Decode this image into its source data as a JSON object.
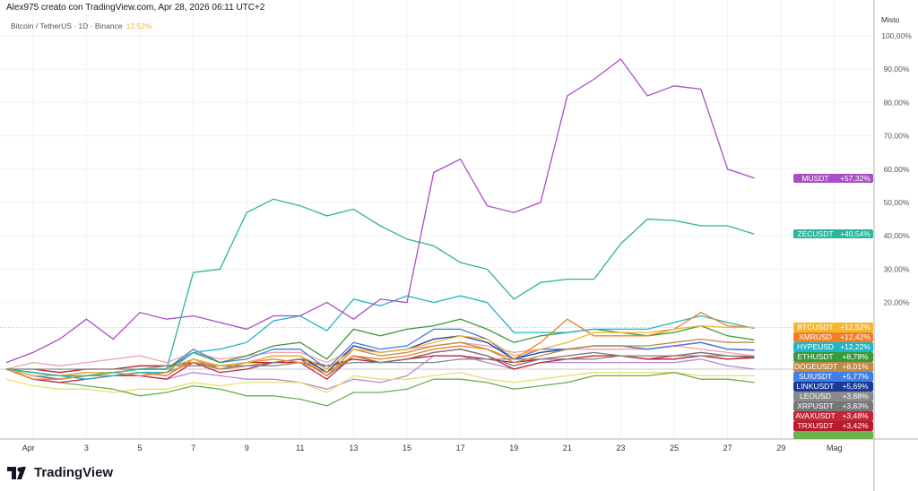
{
  "header": {
    "attribution": "Alex975 creato con TradingView.com, Apr 28, 2026 06:11 UTC+2"
  },
  "legend": {
    "symbol": "Bitcoin / TetherUS · 1D · Binance",
    "change": "12,52%"
  },
  "axis": {
    "scale_mode": "Misto"
  },
  "logo": {
    "text": "TradingView"
  },
  "chart_data": {
    "type": "line",
    "x_tick_labels": [
      "Apr",
      "3",
      "5",
      "7",
      "9",
      "11",
      "13",
      "15",
      "17",
      "19",
      "21",
      "23",
      "25",
      "27",
      "29",
      "Mag"
    ],
    "y_tick_labels": [
      "100,00%",
      "90,00%",
      "80,00%",
      "70,00%",
      "60,00%",
      "50,00%",
      "40,00%",
      "30,00%",
      "20,00%"
    ],
    "ylim": [
      -22,
      103
    ],
    "grid": true,
    "series": [
      {
        "name": "MUSDT",
        "label": "+57,32%",
        "color": "#a94ec4",
        "values": [
          2,
          5,
          9,
          15,
          9,
          17,
          15,
          16,
          14,
          12,
          16,
          16,
          20,
          15,
          21,
          20,
          59,
          63,
          49,
          47,
          50,
          82,
          87,
          93,
          82,
          85,
          84,
          60,
          57.32
        ]
      },
      {
        "name": "ZECUSDT",
        "label": "+40,54%",
        "color": "#2bb59a",
        "values": [
          0,
          -1,
          -2,
          -2,
          -1,
          0,
          0,
          29,
          30,
          47,
          51,
          49,
          46,
          48,
          43,
          39,
          37,
          32,
          30,
          21,
          26,
          27,
          27,
          37.6,
          45,
          44.6,
          43,
          43,
          40.54
        ]
      },
      {
        "name": "BTCUSDT",
        "label": "+12,52%",
        "color": "#f5b52e",
        "values": [
          0,
          -2,
          -2,
          -1,
          -1,
          0,
          0,
          3,
          1,
          2,
          4,
          4,
          0,
          6,
          5,
          6,
          8,
          10,
          9,
          4,
          6,
          8,
          11,
          11,
          11,
          12,
          13,
          12.5,
          12.52
        ]
      },
      {
        "name": "XMRUSD",
        "label": "+12,42%",
        "color": "#f07f2a",
        "values": [
          0,
          -3,
          -3,
          -2,
          -1,
          -2,
          -1,
          2,
          1,
          2,
          3,
          2,
          -1,
          4,
          3,
          4,
          6,
          7,
          6,
          3,
          8,
          15,
          10,
          10,
          10,
          12,
          17,
          13,
          12.42
        ]
      },
      {
        "name": "HYPEUSD",
        "label": "+12,22%",
        "color": "#1fb6c9",
        "values": [
          0,
          -1,
          -2,
          -3,
          -2,
          -1,
          -1,
          5,
          6,
          8,
          14.5,
          16,
          11.5,
          21,
          19,
          22,
          20,
          22,
          20,
          11,
          11,
          11,
          12,
          12,
          12,
          14,
          16,
          14,
          12.22
        ]
      },
      {
        "name": "ETHUSDT",
        "label": "+8,78%",
        "color": "#3a9a3a",
        "values": [
          0,
          -2,
          -2,
          -1,
          -1,
          0,
          0,
          5,
          2,
          4,
          7,
          8,
          3,
          12,
          10,
          12,
          13,
          15,
          12,
          8,
          10,
          11,
          12,
          11,
          10,
          11,
          13,
          10,
          8.78
        ]
      },
      {
        "name": "DOGEUSDT",
        "label": "+8,01%",
        "color": "#c08a4a",
        "values": [
          0,
          -3,
          -3,
          -2,
          -2,
          -1,
          -2,
          3,
          0,
          2,
          4,
          4,
          -2,
          6,
          4,
          5,
          7,
          8,
          6,
          2,
          4,
          6,
          7,
          7,
          7,
          8,
          9,
          8,
          8.01
        ]
      },
      {
        "name": "SUIUSDT",
        "label": "+5,77%",
        "color": "#3f7fe6",
        "values": [
          0,
          -2,
          -3,
          -2,
          -1,
          0,
          0,
          6,
          2,
          3,
          6,
          6,
          0,
          8,
          6,
          7,
          12,
          12,
          9,
          3,
          6,
          6,
          7,
          7,
          6,
          7,
          8,
          6,
          5.77
        ]
      },
      {
        "name": "LINKUSDT",
        "label": "+5,69%",
        "color": "#1a3a9a",
        "values": [
          0,
          -1,
          -2,
          -1,
          -1,
          0,
          0,
          3,
          1,
          2,
          4,
          4,
          -1,
          7,
          5,
          6,
          9,
          10,
          8,
          3,
          5,
          6,
          7,
          7,
          6,
          7,
          8,
          6,
          5.69
        ]
      },
      {
        "name": "LEOUSD",
        "label": "+3,88%",
        "color": "#8a8a8a",
        "values": [
          0,
          0,
          0,
          0,
          0,
          0,
          1,
          1,
          1,
          1,
          1,
          2,
          1,
          2,
          2,
          2,
          2,
          3,
          3,
          3,
          3,
          3,
          3,
          4,
          4,
          4,
          4,
          4,
          3.88
        ]
      },
      {
        "name": "XRPUSDT",
        "label": "+3,83%",
        "color": "#777777",
        "values": [
          0,
          -2,
          -3,
          -2,
          -2,
          -1,
          -1,
          2,
          0,
          1,
          2,
          3,
          -2,
          4,
          2,
          3,
          5,
          6,
          4,
          1,
          3,
          4,
          5,
          4,
          4,
          4,
          5,
          4,
          3.83
        ]
      },
      {
        "name": "AVAXUSDT",
        "label": "+3,48%",
        "color": "#c2263a",
        "values": [
          0,
          -3,
          -4,
          -3,
          -2,
          -2,
          -3,
          2,
          -1,
          0,
          2,
          2,
          -3,
          4,
          2,
          3,
          5,
          6,
          4,
          0,
          2,
          3,
          4,
          4,
          3,
          4,
          5,
          4,
          3.48
        ]
      },
      {
        "name": "TRXUSDT",
        "label": "+3,42%",
        "color": "#b71c2c",
        "values": [
          0,
          0,
          -1,
          0,
          0,
          1,
          1,
          2,
          1,
          2,
          2,
          3,
          1,
          3,
          2,
          3,
          4,
          4,
          3,
          2,
          3,
          3,
          4,
          4,
          3,
          3,
          4,
          3,
          3.42
        ]
      },
      {
        "name": "",
        "label": "",
        "color": "#6ab04c",
        "values": [
          0,
          -3,
          -4,
          -5,
          -6,
          -8,
          -7,
          -5,
          -6,
          -8,
          -8,
          -9,
          -11,
          -7,
          -7,
          -6,
          -3,
          -3,
          -4,
          -6,
          -5,
          -4,
          -2,
          -2,
          -2,
          -1,
          -3,
          -3,
          -4
        ]
      },
      {
        "name": "",
        "label": "",
        "color": "#f0a0b0",
        "values": [
          0,
          2,
          1,
          2,
          3,
          4,
          2,
          5,
          3,
          4,
          5,
          5,
          2,
          6,
          5,
          6,
          7,
          8,
          7,
          5,
          6,
          6,
          6,
          6,
          6,
          7,
          6,
          5,
          4
        ]
      },
      {
        "name": "",
        "label": "",
        "color": "#e6e070",
        "values": [
          -3,
          -5,
          -6,
          -6,
          -7,
          -6,
          -6,
          -4,
          -5,
          -4,
          -4,
          -4,
          -7,
          -2,
          -3,
          -3,
          -2,
          -1,
          -3,
          -4,
          -3,
          -2,
          -1,
          -1,
          -1,
          -1,
          -2,
          -2,
          -2
        ]
      },
      {
        "name": "",
        "label": "",
        "color": "#b58ad8",
        "values": [
          0,
          -2,
          -3,
          -2,
          -2,
          -2,
          -3,
          -1,
          -2,
          -3,
          -3,
          -4,
          -6,
          -3,
          -4,
          -2,
          4,
          4,
          2,
          0,
          2,
          2,
          2,
          2,
          2,
          2,
          3,
          1,
          0
        ]
      }
    ]
  }
}
